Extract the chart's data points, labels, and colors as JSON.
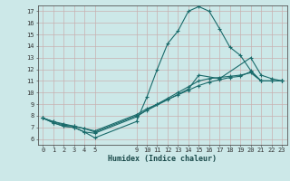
{
  "title": "",
  "xlabel": "Humidex (Indice chaleur)",
  "background_color": "#cce8e8",
  "grid_color": "#c8b0b0",
  "line_color": "#1a6b6b",
  "xlim": [
    -0.5,
    23.5
  ],
  "ylim": [
    5.5,
    17.5
  ],
  "xticks": [
    0,
    1,
    2,
    3,
    4,
    5,
    9,
    10,
    11,
    12,
    13,
    14,
    15,
    16,
    17,
    18,
    19,
    20,
    21,
    22,
    23
  ],
  "yticks": [
    6,
    7,
    8,
    9,
    10,
    11,
    12,
    13,
    14,
    15,
    16,
    17
  ],
  "lines": [
    {
      "x": [
        0,
        1,
        2,
        3,
        4,
        5,
        9,
        10,
        11,
        12,
        13,
        14,
        15,
        16,
        17,
        18,
        19,
        20,
        21,
        22,
        23
      ],
      "y": [
        7.8,
        7.4,
        7.1,
        7.0,
        6.6,
        6.1,
        7.5,
        9.6,
        12.0,
        14.2,
        15.3,
        17.0,
        17.4,
        17.0,
        15.5,
        13.9,
        13.2,
        11.9,
        11.0,
        11.0,
        11.0
      ]
    },
    {
      "x": [
        0,
        1,
        2,
        3,
        4,
        5,
        9,
        10,
        11,
        12,
        13,
        14,
        15,
        16,
        17,
        18,
        19,
        20,
        21,
        22,
        23
      ],
      "y": [
        7.8,
        7.4,
        7.1,
        7.0,
        6.6,
        6.5,
        7.9,
        8.5,
        9.0,
        9.5,
        10.0,
        10.5,
        11.0,
        11.2,
        11.3,
        11.4,
        11.5,
        11.7,
        11.0,
        11.0,
        11.0
      ]
    },
    {
      "x": [
        0,
        1,
        2,
        3,
        4,
        5,
        9,
        10,
        11,
        12,
        13,
        14,
        15,
        16,
        17,
        18,
        19,
        20,
        21,
        22,
        23
      ],
      "y": [
        7.8,
        7.5,
        7.2,
        7.1,
        6.9,
        6.7,
        8.1,
        8.6,
        9.0,
        9.4,
        9.8,
        10.2,
        10.6,
        10.9,
        11.1,
        11.3,
        11.4,
        11.8,
        11.0,
        11.0,
        11.0
      ]
    },
    {
      "x": [
        0,
        1,
        2,
        3,
        4,
        5,
        9,
        14,
        15,
        17,
        20,
        21,
        22,
        23
      ],
      "y": [
        7.8,
        7.5,
        7.3,
        7.1,
        6.9,
        6.6,
        8.0,
        10.3,
        11.5,
        11.2,
        13.0,
        11.5,
        11.2,
        11.0
      ]
    }
  ]
}
